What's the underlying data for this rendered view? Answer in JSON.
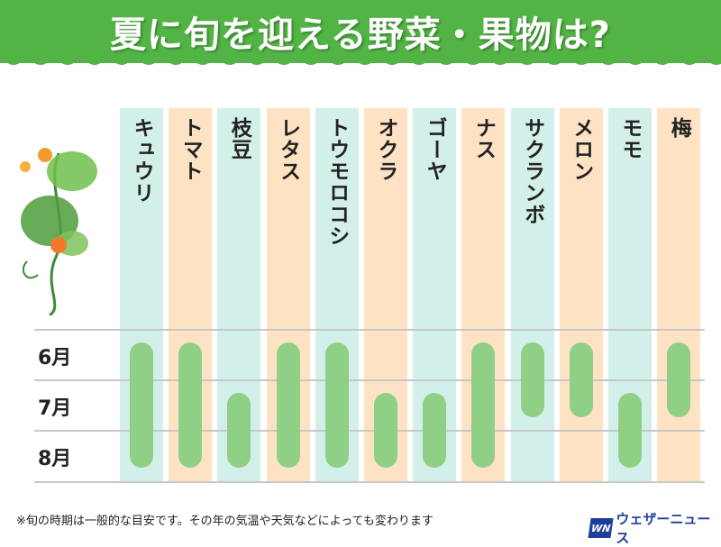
{
  "title": "夏に旬を迎える野菜・果物は?",
  "note": "※旬の時期は一般的な目安です。その年の気温や天気などによっても変わります",
  "logo": {
    "mark": "WN",
    "text": "ウェザーニュース"
  },
  "colors": {
    "header": "#52b445",
    "bar": "#90cf86",
    "col_a": "#d3efe9",
    "col_b": "#fde3c4"
  },
  "chart_data": {
    "type": "gantt",
    "title": "夏に旬を迎える野菜・果物は?",
    "rows": [
      "6月",
      "7月",
      "8月"
    ],
    "categories": [
      "キュウリ",
      "トマト",
      "枝豆",
      "レタス",
      "トウモロコシ",
      "オクラ",
      "ゴーヤ",
      "ナス",
      "サクランボ",
      "メロン",
      "モモ",
      "梅"
    ],
    "start": [
      "6月",
      "6月",
      "7月",
      "6月",
      "6月",
      "7月",
      "7月",
      "6月",
      "6月",
      "6月",
      "7月",
      "6月"
    ],
    "end": [
      "8月",
      "8月",
      "8月",
      "8月",
      "8月",
      "8月",
      "8月",
      "8月",
      "7月",
      "7月",
      "8月",
      "7月"
    ]
  }
}
